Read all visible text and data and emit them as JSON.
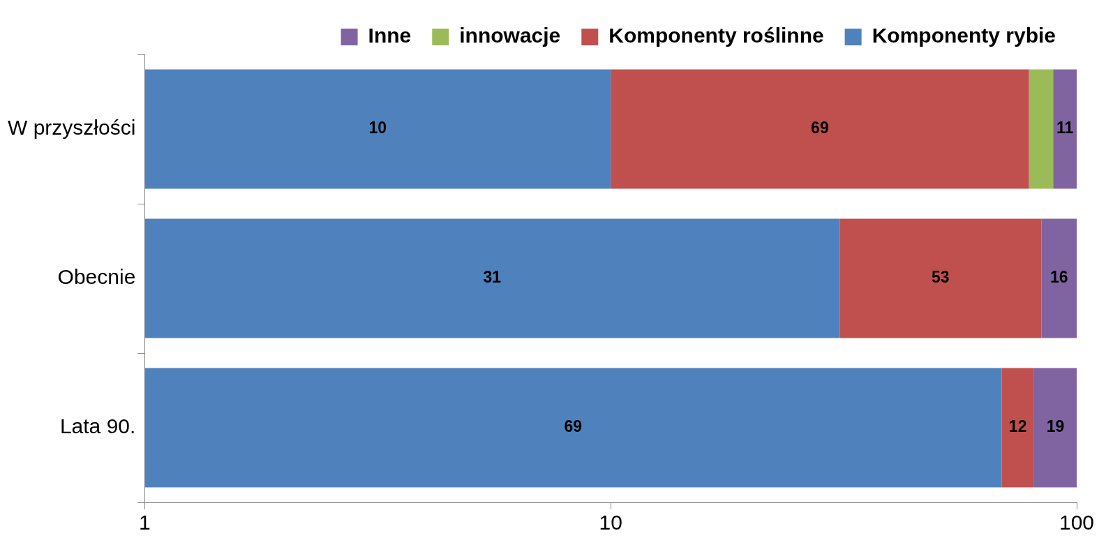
{
  "chart_data": {
    "type": "bar",
    "orientation": "horizontal",
    "stacked": true,
    "log": "x",
    "legend": "top",
    "categories": [
      "W przyszłości",
      "Obecnie",
      "Lata 90."
    ],
    "xlim": [
      1,
      100
    ],
    "xticks": [
      1,
      10,
      100
    ],
    "series": [
      {
        "name": "Komponenty rybie",
        "color": "#4f81bd",
        "values": [
          10,
          31,
          69
        ],
        "value_labels": [
          "10",
          "31",
          "69"
        ]
      },
      {
        "name": "Komponenty roślinne",
        "color": "#c0504d",
        "values": [
          69,
          53,
          12
        ],
        "value_labels": [
          "69",
          "53",
          "12"
        ]
      },
      {
        "name": "innowacje",
        "color": "#9bbb59",
        "values": [
          10,
          null,
          null
        ]
      },
      {
        "name": "Inne",
        "color": "#8064a2",
        "values": [
          11,
          16,
          19
        ],
        "value_labels": [
          "11",
          "16",
          "19"
        ]
      }
    ]
  }
}
